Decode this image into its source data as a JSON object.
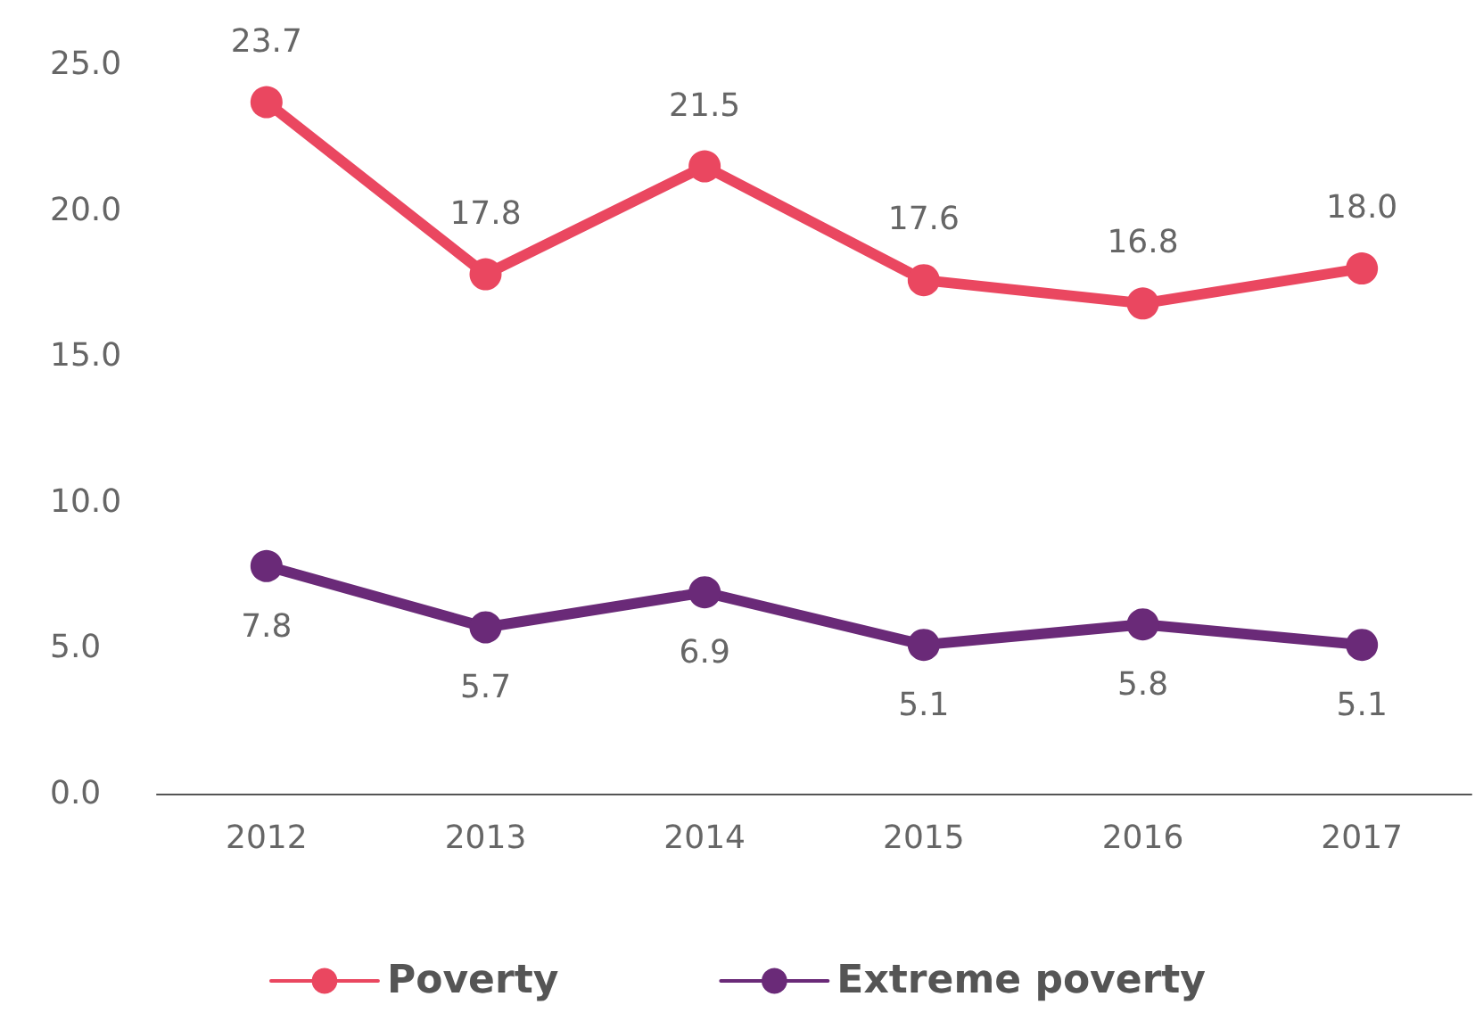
{
  "chart_data": {
    "type": "line",
    "categories": [
      "2012",
      "2013",
      "2014",
      "2015",
      "2016",
      "2017"
    ],
    "series": [
      {
        "name": "Poverty",
        "color": "#ea4760",
        "values": [
          23.7,
          17.8,
          21.5,
          17.6,
          16.8,
          18.0
        ],
        "value_labels": [
          "23.7",
          "17.8",
          "21.5",
          "17.6",
          "16.8",
          "18.0"
        ]
      },
      {
        "name": "Extreme poverty",
        "color": "#6a2a78",
        "values": [
          7.8,
          5.7,
          6.9,
          5.1,
          5.8,
          5.1
        ],
        "value_labels": [
          "7.8",
          "5.7",
          "6.9",
          "5.1",
          "5.8",
          "5.1"
        ]
      }
    ],
    "ylim": [
      0,
      25
    ],
    "yticks": [
      {
        "value": 0,
        "label": "0.0"
      },
      {
        "value": 5,
        "label": "5.0"
      },
      {
        "value": 10,
        "label": "10.0"
      },
      {
        "value": 15,
        "label": "15.0"
      },
      {
        "value": 20,
        "label": "20.0"
      },
      {
        "value": 25,
        "label": "25.0"
      }
    ],
    "grid": false,
    "legend": "bottom",
    "marker": "circle",
    "line_style": "solid"
  }
}
